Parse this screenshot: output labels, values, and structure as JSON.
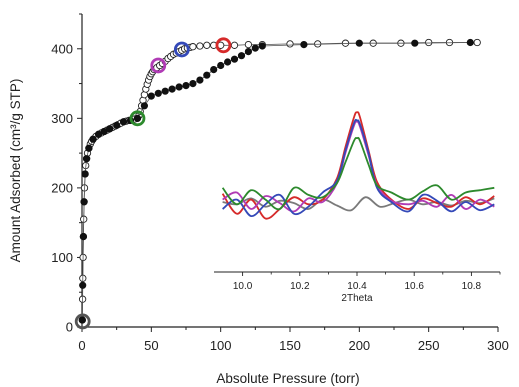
{
  "chart_data": [
    {
      "type": "scatter",
      "title": "",
      "xlabel": "Absolute Pressure (torr)",
      "ylabel": "Amount Adsorbed (cm³/g STP)",
      "xlim": [
        0,
        300
      ],
      "ylim": [
        0,
        450
      ],
      "xticks": [
        "0",
        "50",
        "100",
        "150",
        "200",
        "250",
        "300"
      ],
      "yticks": [
        "0",
        "100",
        "200",
        "300",
        "400"
      ],
      "grid": false,
      "legend": "none",
      "series": [
        {
          "marker": "open-circle",
          "line": "connected",
          "color": "#222222",
          "points": [
            [
              0.2,
              10
            ],
            [
              0.4,
              40
            ],
            [
              0.6,
              70
            ],
            [
              0.8,
              100
            ],
            [
              1.0,
              130
            ],
            [
              1.2,
              155
            ],
            [
              1.5,
              180
            ],
            [
              1.8,
              200
            ],
            [
              2.2,
              220
            ],
            [
              2.7,
              232
            ],
            [
              3.3,
              242
            ],
            [
              4,
              250
            ],
            [
              5,
              257
            ],
            [
              6,
              263
            ],
            [
              7,
              267
            ],
            [
              8,
              270
            ],
            [
              10,
              274
            ],
            [
              12,
              277
            ],
            [
              14,
              279
            ],
            [
              16,
              281
            ],
            [
              18,
              283
            ],
            [
              20,
              285
            ],
            [
              22,
              287
            ],
            [
              24,
              289
            ],
            [
              26,
              291
            ],
            [
              28,
              293
            ],
            [
              30,
              295
            ],
            [
              32,
              296
            ],
            [
              34,
              297
            ],
            [
              36,
              298
            ],
            [
              38,
              299
            ],
            [
              40,
              300
            ],
            [
              41,
              304
            ],
            [
              42,
              310
            ],
            [
              43,
              318
            ],
            [
              44,
              326
            ],
            [
              45,
              334
            ],
            [
              46,
              342
            ],
            [
              47,
              349
            ],
            [
              48,
              355
            ],
            [
              49,
              360
            ],
            [
              50,
              364
            ],
            [
              51,
              367
            ],
            [
              52,
              370
            ],
            [
              54,
              373
            ],
            [
              56,
              376
            ],
            [
              58,
              379
            ],
            [
              60,
              382
            ],
            [
              62,
              386
            ],
            [
              64,
              389
            ],
            [
              66,
              392
            ],
            [
              68,
              394
            ],
            [
              70,
              396
            ],
            [
              72,
              398
            ],
            [
              74,
              400
            ],
            [
              76,
              401
            ],
            [
              78,
              402
            ],
            [
              80,
              403
            ],
            [
              85,
              404
            ],
            [
              90,
              405
            ],
            [
              95,
              405
            ],
            [
              100,
              405
            ],
            [
              110,
              405
            ],
            [
              120,
              406
            ],
            [
              130,
              406
            ],
            [
              150,
              407
            ],
            [
              170,
              407
            ],
            [
              190,
              408
            ],
            [
              210,
              408
            ],
            [
              230,
              408
            ],
            [
              250,
              409
            ],
            [
              265,
              409
            ],
            [
              285,
              409
            ]
          ]
        },
        {
          "marker": "filled-circle",
          "line": "connected",
          "color": "#111111",
          "points": [
            [
              0.2,
              10
            ],
            [
              0.5,
              60
            ],
            [
              1.0,
              130
            ],
            [
              1.5,
              180
            ],
            [
              2.2,
              220
            ],
            [
              3.3,
              242
            ],
            [
              5,
              257
            ],
            [
              8,
              270
            ],
            [
              12,
              277
            ],
            [
              16,
              281
            ],
            [
              20,
              285
            ],
            [
              25,
              290
            ],
            [
              30,
              295
            ],
            [
              35,
              297
            ],
            [
              40,
              300
            ],
            [
              45,
              318
            ],
            [
              50,
              332
            ],
            [
              55,
              336
            ],
            [
              60,
              339
            ],
            [
              65,
              342
            ],
            [
              70,
              345
            ],
            [
              75,
              347
            ],
            [
              80,
              350
            ],
            [
              85,
              355
            ],
            [
              90,
              362
            ],
            [
              95,
              370
            ],
            [
              100,
              376
            ],
            [
              105,
              381
            ],
            [
              110,
              385
            ],
            [
              115,
              390
            ],
            [
              120,
              396
            ],
            [
              125,
              401
            ],
            [
              130,
              404
            ],
            [
              160,
              406
            ],
            [
              200,
              408
            ],
            [
              240,
              408
            ],
            [
              280,
              409
            ]
          ]
        }
      ],
      "highlight_circles": [
        {
          "color": "#555555",
          "x": 0.5,
          "y": 8
        },
        {
          "color": "#2d8a2d",
          "x": 40,
          "y": 300
        },
        {
          "color": "#b03bb5",
          "x": 55,
          "y": 376
        },
        {
          "color": "#3449b8",
          "x": 72,
          "y": 399
        },
        {
          "color": "#d62a2a",
          "x": 102,
          "y": 405
        }
      ]
    },
    {
      "type": "line",
      "role": "inset",
      "title": "",
      "xlabel": "2Theta",
      "ylabel": "",
      "xlim": [
        9.9,
        10.9
      ],
      "xticks": [
        "10.0",
        "10.2",
        "10.4",
        "10.6",
        "10.8"
      ],
      "grid": false,
      "legend": "none",
      "series": [
        {
          "color": "#7a7a7a",
          "x": [
            9.93,
            9.98,
            10.03,
            10.08,
            10.13,
            10.18,
            10.23,
            10.28,
            10.33,
            10.38,
            10.43,
            10.48,
            10.53,
            10.58,
            10.63,
            10.68,
            10.73,
            10.78,
            10.83,
            10.88
          ],
          "y": [
            0.28,
            0.26,
            0.31,
            0.24,
            0.29,
            0.27,
            0.22,
            0.3,
            0.25,
            0.21,
            0.32,
            0.24,
            0.27,
            0.3,
            0.26,
            0.28,
            0.25,
            0.29,
            0.27,
            0.31
          ]
        },
        {
          "color": "#d62a2a",
          "x": [
            9.93,
            9.98,
            10.03,
            10.08,
            10.13,
            10.18,
            10.23,
            10.28,
            10.33,
            10.36,
            10.39,
            10.4,
            10.41,
            10.44,
            10.47,
            10.52,
            10.58,
            10.63,
            10.68,
            10.73,
            10.78,
            10.83,
            10.88
          ],
          "y": [
            0.35,
            0.18,
            0.3,
            0.14,
            0.22,
            0.32,
            0.26,
            0.3,
            0.48,
            0.75,
            1.0,
            1.04,
            1.0,
            0.72,
            0.45,
            0.3,
            0.22,
            0.31,
            0.27,
            0.24,
            0.32,
            0.26,
            0.33
          ]
        },
        {
          "color": "#b03bb5",
          "x": [
            9.93,
            9.98,
            10.03,
            10.08,
            10.13,
            10.18,
            10.23,
            10.28,
            10.33,
            10.36,
            10.39,
            10.4,
            10.41,
            10.44,
            10.47,
            10.52,
            10.58,
            10.63,
            10.68,
            10.73,
            10.78,
            10.83,
            10.88
          ],
          "y": [
            0.3,
            0.36,
            0.22,
            0.33,
            0.27,
            0.2,
            0.31,
            0.28,
            0.44,
            0.7,
            0.93,
            0.96,
            0.92,
            0.68,
            0.42,
            0.29,
            0.26,
            0.29,
            0.24,
            0.34,
            0.22,
            0.3,
            0.24
          ]
        },
        {
          "color": "#3449b8",
          "x": [
            9.93,
            9.98,
            10.03,
            10.08,
            10.13,
            10.18,
            10.23,
            10.28,
            10.33,
            10.36,
            10.39,
            10.4,
            10.41,
            10.44,
            10.47,
            10.52,
            10.58,
            10.63,
            10.68,
            10.73,
            10.78,
            10.83,
            10.88
          ],
          "y": [
            0.22,
            0.3,
            0.16,
            0.26,
            0.34,
            0.18,
            0.24,
            0.36,
            0.46,
            0.72,
            0.95,
            0.97,
            0.94,
            0.7,
            0.4,
            0.28,
            0.2,
            0.34,
            0.29,
            0.2,
            0.28,
            0.21,
            0.26
          ]
        },
        {
          "color": "#2d8a2d",
          "x": [
            9.93,
            9.98,
            10.03,
            10.08,
            10.13,
            10.18,
            10.23,
            10.28,
            10.33,
            10.36,
            10.39,
            10.4,
            10.41,
            10.44,
            10.47,
            10.52,
            10.58,
            10.63,
            10.68,
            10.73,
            10.78,
            10.83,
            10.88
          ],
          "y": [
            0.4,
            0.26,
            0.38,
            0.3,
            0.22,
            0.4,
            0.34,
            0.32,
            0.44,
            0.62,
            0.8,
            0.82,
            0.8,
            0.6,
            0.42,
            0.36,
            0.3,
            0.37,
            0.42,
            0.3,
            0.36,
            0.38,
            0.4
          ]
        }
      ]
    }
  ]
}
